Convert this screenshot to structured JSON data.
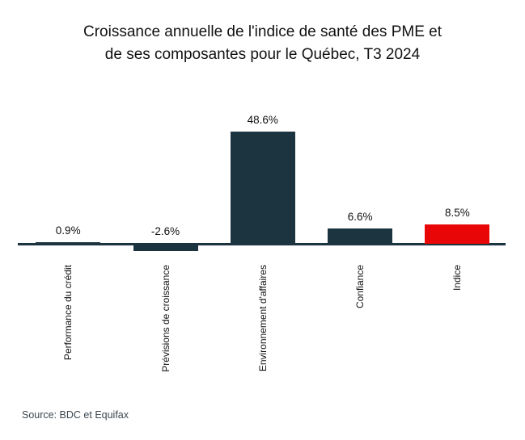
{
  "title": {
    "line1": "Croissance annuelle de l'indice de santé des PME et",
    "line2": "de ses composantes pour le Québec, T3 2024"
  },
  "source": {
    "text": "Source: BDC et Equifax"
  },
  "colors": {
    "bar_navy": "#1c3340",
    "bar_red": "#e90606",
    "axis": "#1c3340",
    "title_text": "#111111",
    "label_text": "#111111",
    "source_text": "#3c464e",
    "background": "#ffffff"
  },
  "chart_data": {
    "type": "bar",
    "orientation": "vertical",
    "title": "Croissance annuelle de l'indice de santé des PME et de ses composantes pour le Québec, T3 2024",
    "categories": [
      "Performance du crédit",
      "Prévisions de croissance",
      "Environnement d'affaires",
      "Confiance",
      "Indice"
    ],
    "values": [
      0.9,
      -2.6,
      48.6,
      6.6,
      8.5
    ],
    "value_labels": [
      "0.9%",
      "-2.6%",
      "48.6%",
      "6.6%",
      "8.5%"
    ],
    "bar_colors": [
      "#1c3340",
      "#1c3340",
      "#1c3340",
      "#1c3340",
      "#e90606"
    ],
    "unit": "%",
    "baseline": 0,
    "ylim": [
      -5,
      52
    ],
    "grid": false,
    "legend": "none",
    "xlabel": "",
    "ylabel": "",
    "category_label_rotation_deg": -90,
    "source": "Source: BDC et Equifax"
  }
}
